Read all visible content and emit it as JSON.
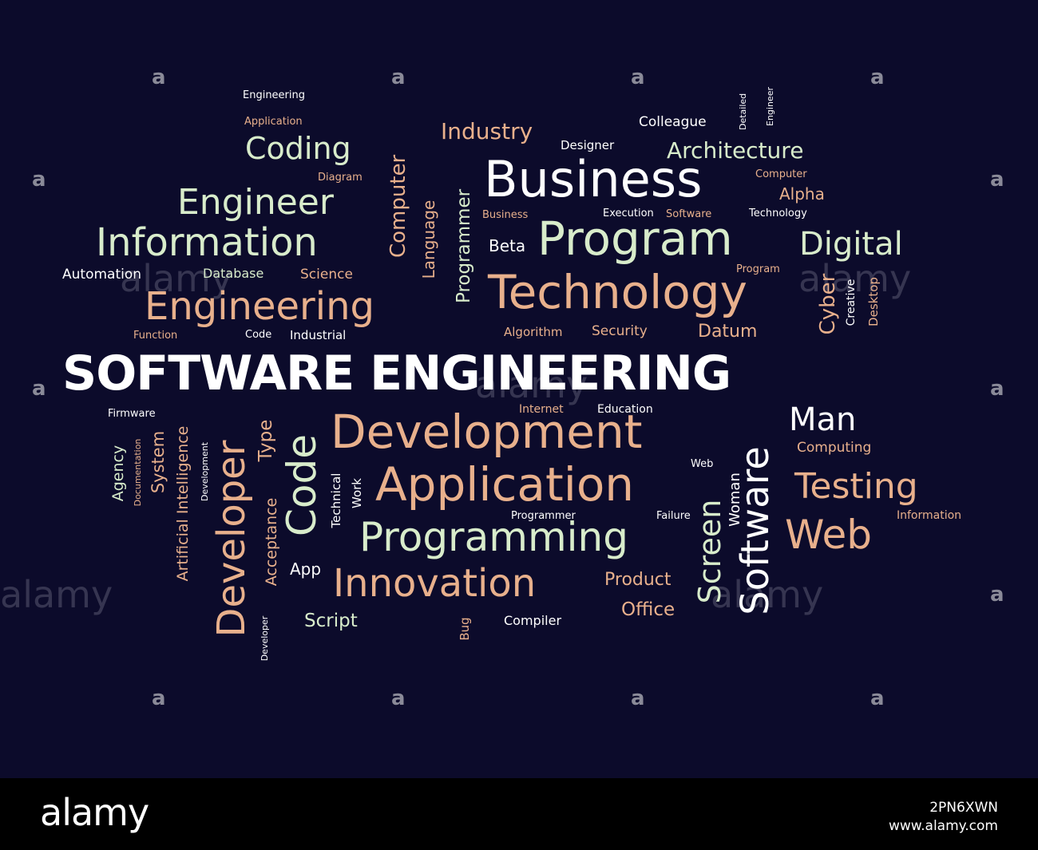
{
  "colors": {
    "background": "#0c0b2b",
    "white": "#ffffff",
    "cream": "#d8eccb",
    "peach": "#e8b08c",
    "footer": "#000000"
  },
  "title": "SOFTWARE ENGINEERING",
  "words": {
    "engineering_sm": "Engineering",
    "application_sm": "Application",
    "coding": "Coding",
    "diagram": "Diagram",
    "engineer": "Engineer",
    "information": "Information",
    "automation": "Automation",
    "database": "Database",
    "science": "Science",
    "engineering_lg": "Engineering",
    "function": "Function",
    "code_sm": "Code",
    "industrial": "Industrial",
    "computer_v": "Computer",
    "language": "Language",
    "programmer_v": "Programmer",
    "industry": "Industry",
    "designer": "Designer",
    "colleague": "Colleague",
    "detailed": "Detailed",
    "engineer_v": "Engineer",
    "architecture": "Architecture",
    "business": "Business",
    "computer_sm": "Computer",
    "alpha": "Alpha",
    "business_sm": "Business",
    "execution": "Execution",
    "software_sm": "Software",
    "technology_sm": "Technology",
    "beta": "Beta",
    "program": "Program",
    "digital": "Digital",
    "program_sm": "Program",
    "technology": "Technology",
    "cyber": "Cyber",
    "creative": "Creative",
    "desktop": "Desktop",
    "algorithm": "Algorithm",
    "security": "Security",
    "datum": "Datum",
    "firmware": "Firmware",
    "internet": "Internet",
    "education": "Education",
    "man": "Man",
    "agency": "Agency",
    "documentation": "Documentation",
    "system": "System",
    "artificial_intelligence": "Artificial Intelligence",
    "development_v": "Development",
    "developer_lg": "Developer",
    "type": "Type",
    "acceptance": "Acceptance",
    "code_lg": "Code",
    "development": "Development",
    "computing": "Computing",
    "web_sm": "Web",
    "technical": "Technical",
    "work": "Work",
    "application_lg": "Application",
    "screen": "Screen",
    "woman": "Woman",
    "software_v": "Software",
    "testing": "Testing",
    "programmer_sm": "Programmer",
    "failure": "Failure",
    "information_sm": "Information",
    "programming": "Programming",
    "web": "Web",
    "app": "App",
    "innovation": "Innovation",
    "product": "Product",
    "office": "Office",
    "script": "Script",
    "bug": "Bug",
    "compiler": "Compiler",
    "developer_sm": "Developer"
  },
  "watermark": {
    "logo": "alamy",
    "image_id": "2PN6XWN",
    "site": "www.alamy.com"
  }
}
